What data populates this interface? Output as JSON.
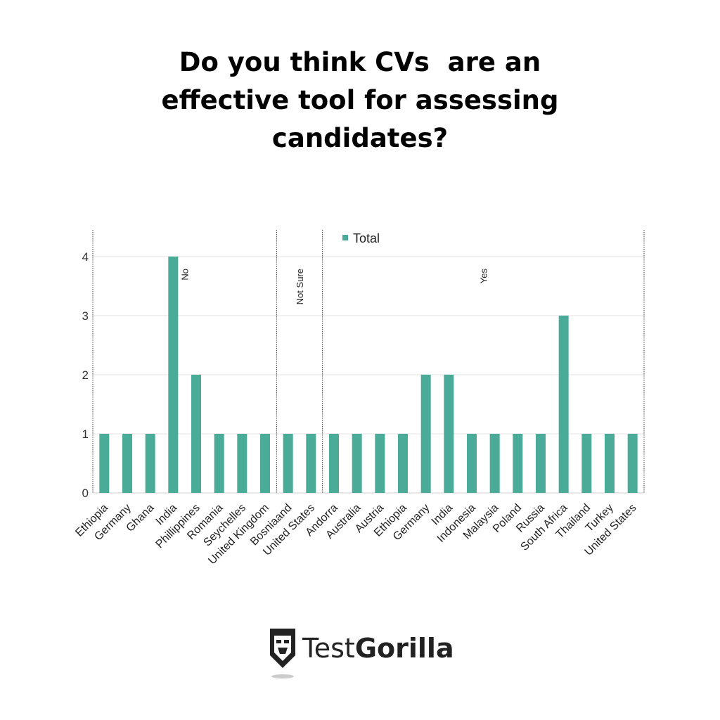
{
  "chart_data": {
    "type": "bar",
    "title_lines": [
      "Do you think CVs  are an",
      "effective tool for assessing",
      "candidates?"
    ],
    "groups": [
      {
        "name": "No",
        "categories": [
          "Ethiopia",
          "Germany",
          "Ghana",
          "India",
          "Phillippines",
          "Romania",
          "Seychelles",
          "United Kingdom"
        ],
        "values": [
          1,
          1,
          1,
          4,
          2,
          1,
          1,
          1
        ]
      },
      {
        "name": "Not Sure",
        "categories": [
          "Bosniaand",
          "United States"
        ],
        "values": [
          1,
          1
        ]
      },
      {
        "name": "Yes",
        "categories": [
          "Andorra",
          "Australia",
          "Austria",
          "Ethiopia",
          "Germany",
          "India",
          "Indonesia",
          "Malaysia",
          "Poland",
          "Russia",
          "South Africa",
          "Thailand",
          "Turkey",
          "United States"
        ],
        "values": [
          1,
          1,
          1,
          1,
          2,
          2,
          1,
          1,
          1,
          1,
          3,
          1,
          1,
          1
        ]
      }
    ],
    "series": [
      {
        "name": "Total"
      }
    ],
    "yticks": [
      "0",
      "1",
      "2",
      "3",
      "4"
    ],
    "ylim": [
      0,
      4.45
    ],
    "grid": true,
    "legend": "top",
    "bar_color": "#4aab99"
  },
  "logo": {
    "text_light": "Test",
    "text_bold": "Gorilla"
  }
}
